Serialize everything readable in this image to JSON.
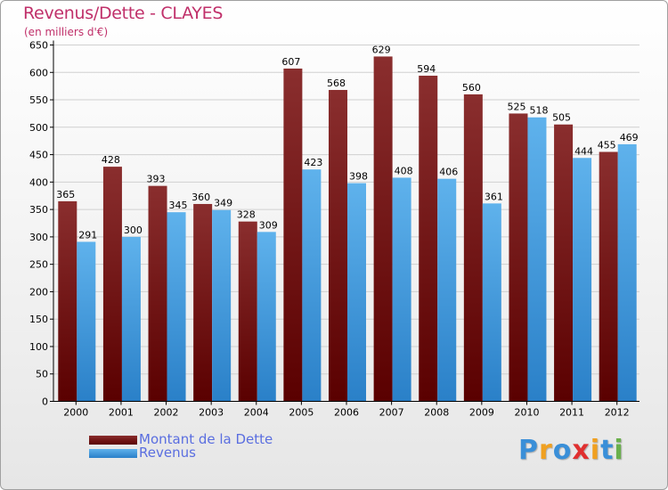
{
  "header": {
    "title": "Revenus/Dette - CLAYES",
    "subtitle": "(en milliers d'€)"
  },
  "colors": {
    "dette_top": "#8a2e2e",
    "dette_bottom": "#5a0000",
    "revenus_top": "#5fb2ec",
    "revenus_bottom": "#2a80c8",
    "axis": "#000000",
    "grid": "#d0d0d0",
    "tick_text": "#000000"
  },
  "chart_data": {
    "type": "bar",
    "title": "Revenus/Dette - CLAYES",
    "ylabel": "(en milliers d'€)",
    "xlabel": "",
    "categories": [
      "2000",
      "2001",
      "2002",
      "2003",
      "2004",
      "2005",
      "2006",
      "2007",
      "2008",
      "2009",
      "2010",
      "2011",
      "2012"
    ],
    "series": [
      {
        "name": "Montant de la Dette",
        "values": [
          365,
          428,
          393,
          360,
          328,
          607,
          568,
          629,
          594,
          560,
          525,
          505,
          455
        ]
      },
      {
        "name": "Revenus",
        "values": [
          291,
          300,
          345,
          349,
          309,
          423,
          398,
          408,
          406,
          361,
          518,
          444,
          469
        ]
      }
    ],
    "ylim": [
      0,
      650
    ],
    "yticks": [
      "0",
      "50",
      "100",
      "150",
      "200",
      "250",
      "300",
      "350",
      "400",
      "450",
      "500",
      "550",
      "600",
      "650"
    ],
    "grid": true,
    "legend_position": "bottom-left"
  },
  "legend": {
    "items": [
      {
        "label": "Montant de la Dette"
      },
      {
        "label": "Revenus"
      }
    ]
  },
  "logo": {
    "text": "Proxiti",
    "letters": [
      {
        "ch": "P",
        "color": "#3a8fd8"
      },
      {
        "ch": "r",
        "color": "#f0a020"
      },
      {
        "ch": "o",
        "color": "#3a8fd8"
      },
      {
        "ch": "x",
        "color": "#e03030"
      },
      {
        "ch": "i",
        "color": "#f0a020"
      },
      {
        "ch": "t",
        "color": "#3a8fd8"
      },
      {
        "ch": "i",
        "color": "#6ab04c"
      }
    ]
  }
}
